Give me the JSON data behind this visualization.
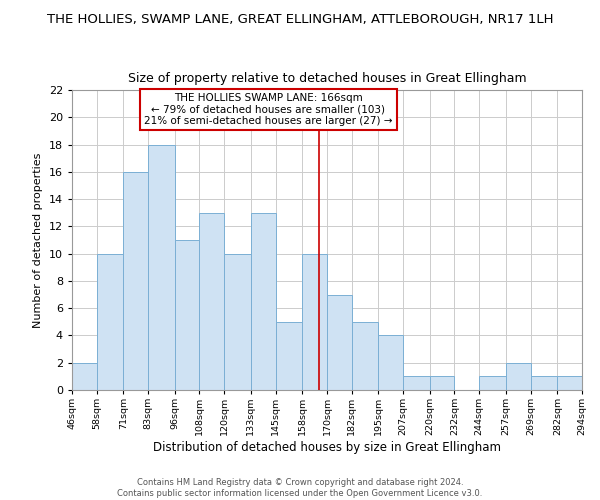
{
  "title": "THE HOLLIES, SWAMP LANE, GREAT ELLINGHAM, ATTLEBOROUGH, NR17 1LH",
  "subtitle": "Size of property relative to detached houses in Great Ellingham",
  "xlabel": "Distribution of detached houses by size in Great Ellingham",
  "ylabel": "Number of detached properties",
  "bins": [
    46,
    58,
    71,
    83,
    96,
    108,
    120,
    133,
    145,
    158,
    170,
    182,
    195,
    207,
    220,
    232,
    244,
    257,
    269,
    282,
    294
  ],
  "counts": [
    2,
    10,
    16,
    18,
    11,
    13,
    10,
    13,
    5,
    10,
    7,
    5,
    4,
    1,
    1,
    0,
    1,
    2,
    1,
    1
  ],
  "bar_color": "#cfe2f3",
  "bar_edge_color": "#7bafd4",
  "grid_color": "#cccccc",
  "vline_x": 166,
  "vline_color": "#cc0000",
  "annotation_text": "THE HOLLIES SWAMP LANE: 166sqm\n← 79% of detached houses are smaller (103)\n21% of semi-detached houses are larger (27) →",
  "annotation_box_color": "white",
  "annotation_box_edge": "#cc0000",
  "ylim": [
    0,
    22
  ],
  "yticks": [
    0,
    2,
    4,
    6,
    8,
    10,
    12,
    14,
    16,
    18,
    20,
    22
  ],
  "footer": "Contains HM Land Registry data © Crown copyright and database right 2024.\nContains public sector information licensed under the Open Government Licence v3.0.",
  "tick_labels": [
    "46sqm",
    "58sqm",
    "71sqm",
    "83sqm",
    "96sqm",
    "108sqm",
    "120sqm",
    "133sqm",
    "145sqm",
    "158sqm",
    "170sqm",
    "182sqm",
    "195sqm",
    "207sqm",
    "220sqm",
    "232sqm",
    "244sqm",
    "257sqm",
    "269sqm",
    "282sqm",
    "294sqm"
  ],
  "bg_color": "#ffffff",
  "title_fontsize": 9.5,
  "subtitle_fontsize": 9,
  "ylabel_fontsize": 8,
  "xlabel_fontsize": 8.5,
  "tick_fontsize": 6.8,
  "ytick_fontsize": 8,
  "annot_fontsize": 7.5,
  "footer_fontsize": 6
}
